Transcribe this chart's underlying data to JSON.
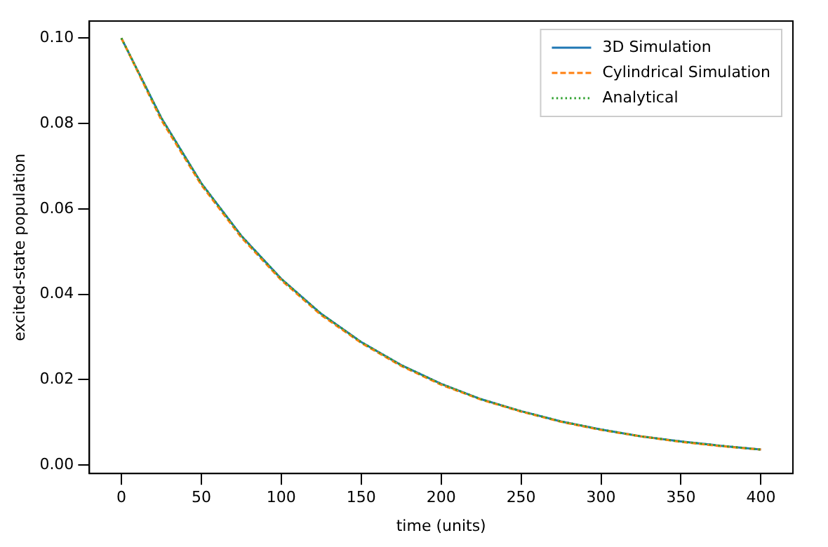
{
  "chart_data": {
    "type": "line",
    "xlabel": "time (units)",
    "ylabel": "excited-state population",
    "x": [
      0,
      25,
      50,
      75,
      100,
      125,
      150,
      175,
      200,
      225,
      250,
      275,
      300,
      325,
      350,
      375,
      400
    ],
    "series": [
      {
        "name": "3D Simulation",
        "color": "#1f77b4",
        "line_style": "solid",
        "values": [
          0.1,
          0.0813,
          0.066,
          0.0537,
          0.0436,
          0.0354,
          0.0288,
          0.0234,
          0.019,
          0.0154,
          0.0126,
          0.0102,
          0.0083,
          0.0067,
          0.0055,
          0.0045,
          0.0036
        ]
      },
      {
        "name": "Cylindrical Simulation",
        "color": "#ff7f0e",
        "line_style": "dashed",
        "values": [
          0.1,
          0.0808,
          0.0656,
          0.0533,
          0.0433,
          0.0351,
          0.0286,
          0.0232,
          0.0188,
          0.0153,
          0.0125,
          0.0101,
          0.0082,
          0.0067,
          0.0054,
          0.0044,
          0.0036
        ]
      },
      {
        "name": "Analytical",
        "color": "#2ca02c",
        "line_style": "dotted",
        "values": [
          0.1,
          0.0813,
          0.066,
          0.0537,
          0.0436,
          0.0354,
          0.0288,
          0.0234,
          0.019,
          0.0154,
          0.0126,
          0.0102,
          0.0083,
          0.0067,
          0.0055,
          0.0045,
          0.0036
        ]
      }
    ],
    "xlim": [
      -20,
      420
    ],
    "xticks": [
      0,
      50,
      100,
      150,
      200,
      250,
      300,
      350,
      400
    ],
    "ylim": [
      -0.002,
      0.104
    ],
    "yticks": [
      {
        "value": 0,
        "label": "0.00"
      },
      {
        "value": 0.02,
        "label": "0.02"
      },
      {
        "value": 0.04,
        "label": "0.04"
      },
      {
        "value": 0.06,
        "label": "0.06"
      },
      {
        "value": 0.08,
        "label": "0.08"
      },
      {
        "value": 0.1,
        "label": "0.10"
      }
    ],
    "legend": "top right",
    "grid": false,
    "marker": "none"
  }
}
